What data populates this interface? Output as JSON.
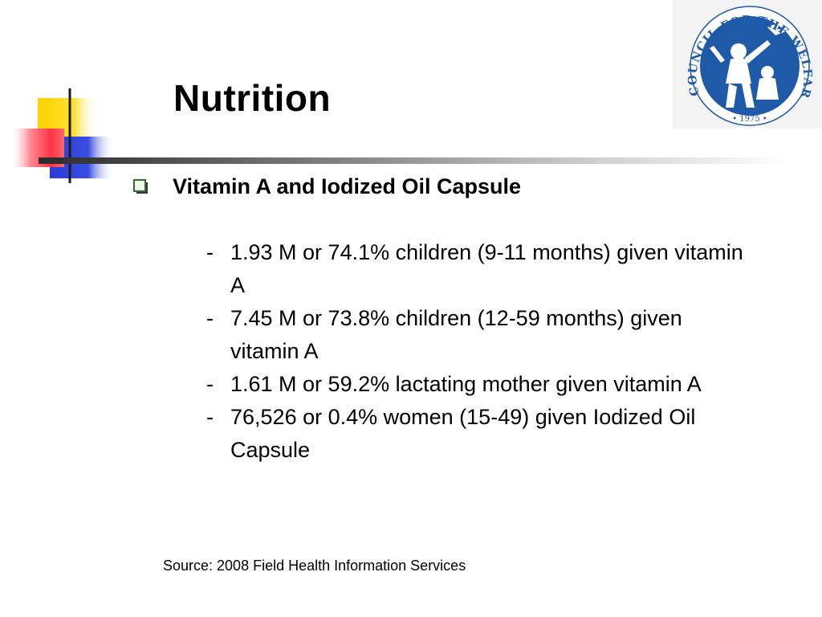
{
  "slide": {
    "title": "Nutrition",
    "bullet": {
      "heading": "Vitamin A and Iodized Oil Capsule",
      "items": [
        {
          "marker": "-",
          "text": "1.93 M or 74.1% children (9-11 months) given vitamin A"
        },
        {
          "marker": "-",
          "text": "7.45 M or 73.8% children (12-59 months) given vitamin A"
        },
        {
          "marker": "-",
          "text": "1.61 M or 59.2% lactating mother given vitamin A"
        },
        {
          "marker": "-",
          "text": "76,526 or 0.4% women (15-49) given Iodized Oil Capsule"
        }
      ]
    },
    "source": "Source:  2008 Field Health Information Services"
  },
  "logo": {
    "ring_text": "COUNCIL FOR THE WELFARE OF CHILDREN",
    "year": "• 1975 •",
    "colors": {
      "brand_blue": "#1e5aa8"
    }
  },
  "decoration": {
    "colors": {
      "yellow": "#ffd700",
      "red": "#ff4d5a",
      "blue": "#2b3fd6",
      "line": "#1a1a1a"
    }
  },
  "icons": {
    "bullet_marker": "checkbox-square-icon"
  }
}
